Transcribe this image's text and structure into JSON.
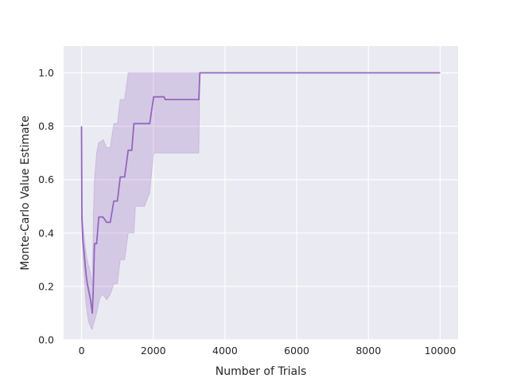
{
  "chart_data": {
    "type": "line",
    "title": "",
    "xlabel": "Number of Trials",
    "ylabel": "Monte-Carlo Value Estimate",
    "xlim": [
      -500,
      10500
    ],
    "ylim": [
      0.0,
      1.1
    ],
    "xticks": [
      0,
      2000,
      4000,
      6000,
      8000,
      10000
    ],
    "xtick_labels": [
      "0",
      "2000",
      "4000",
      "6000",
      "8000",
      "10000"
    ],
    "yticks": [
      0.0,
      0.2,
      0.4,
      0.6,
      0.8,
      1.0
    ],
    "ytick_labels": [
      "0.0",
      "0.2",
      "0.4",
      "0.6",
      "0.8",
      "1.0"
    ],
    "grid": true,
    "legend": "none",
    "colors": {
      "line": "#9467bd",
      "band": "#9467bd",
      "plot_bg": "#eaeaf2",
      "grid": "#ffffff"
    },
    "series": [
      {
        "x": [
          0,
          10,
          40,
          70,
          100,
          130,
          160,
          190,
          220,
          250,
          280,
          300,
          330,
          360,
          420,
          480,
          520,
          600,
          700,
          800,
          900,
          1000,
          1080,
          1200,
          1300,
          1400,
          1460,
          1500,
          1600,
          1750,
          1900,
          2010,
          2100,
          2300,
          2330,
          2600,
          3000,
          3270,
          3300,
          5000,
          7000,
          9000,
          10000
        ],
        "y": [
          0.8,
          0.45,
          0.37,
          0.33,
          0.28,
          0.24,
          0.21,
          0.19,
          0.17,
          0.15,
          0.12,
          0.1,
          0.2,
          0.36,
          0.36,
          0.46,
          0.46,
          0.46,
          0.44,
          0.44,
          0.52,
          0.52,
          0.61,
          0.61,
          0.71,
          0.71,
          0.81,
          0.81,
          0.81,
          0.81,
          0.81,
          0.91,
          0.91,
          0.91,
          0.9,
          0.9,
          0.9,
          0.9,
          1.0,
          1.0,
          1.0,
          1.0,
          1.0
        ],
        "ci_low": [
          0.8,
          0.4,
          0.31,
          0.25,
          0.18,
          0.13,
          0.1,
          0.07,
          0.06,
          0.05,
          0.04,
          0.04,
          0.06,
          0.07,
          0.1,
          0.14,
          0.16,
          0.17,
          0.15,
          0.17,
          0.21,
          0.21,
          0.3,
          0.3,
          0.4,
          0.4,
          0.4,
          0.5,
          0.5,
          0.5,
          0.55,
          0.7,
          0.7,
          0.7,
          0.7,
          0.7,
          0.7,
          0.7,
          1.0,
          1.0,
          1.0,
          1.0,
          1.0
        ],
        "ci_high": [
          0.8,
          0.5,
          0.43,
          0.39,
          0.35,
          0.32,
          0.3,
          0.28,
          0.27,
          0.25,
          0.22,
          0.2,
          0.47,
          0.6,
          0.7,
          0.74,
          0.74,
          0.75,
          0.72,
          0.72,
          0.81,
          0.81,
          0.9,
          0.9,
          1.0,
          1.0,
          1.0,
          1.0,
          1.0,
          1.0,
          1.0,
          1.0,
          1.0,
          1.0,
          1.0,
          1.0,
          1.0,
          1.0,
          1.0,
          1.0,
          1.0,
          1.0,
          1.0
        ]
      }
    ]
  }
}
